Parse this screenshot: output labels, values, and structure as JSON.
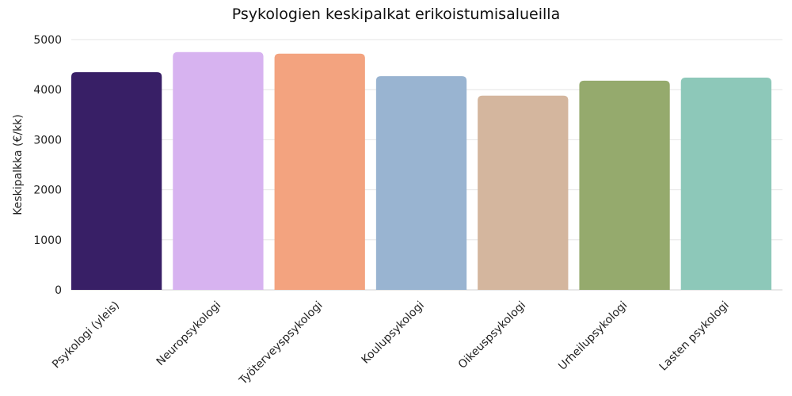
{
  "chart_data": {
    "type": "bar",
    "title": "Psykologien keskipalkat erikoistumisalueilla",
    "xlabel": "",
    "ylabel": "Keskipalkka (€/kk)",
    "ylim": [
      0,
      5000
    ],
    "yticks": [
      0,
      1000,
      2000,
      3000,
      4000,
      5000
    ],
    "grid": true,
    "legend": "none",
    "categories": [
      "Psykologi (yleis)",
      "Neuropsykologi",
      "Työterveyspsykologi",
      "Koulupsykologi",
      "Oikeuspsykologi",
      "Urheilupsykologi",
      "Lasten psykologi"
    ],
    "values": [
      4350,
      4750,
      4720,
      4270,
      3880,
      4180,
      4240
    ],
    "colors": [
      "#381f66",
      "#d7b3f0",
      "#f3a37f",
      "#99b4d1",
      "#d4b69e",
      "#95aa6d",
      "#8dc8b9"
    ]
  }
}
